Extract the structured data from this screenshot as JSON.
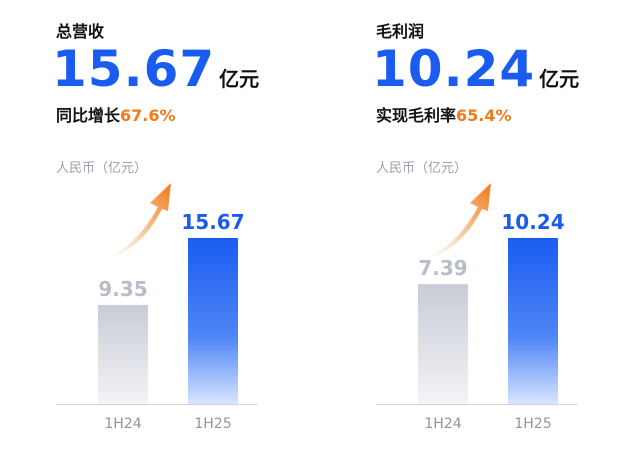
{
  "colors": {
    "accent_blue": "#1a5cf0",
    "growth_orange": "#f07a1c",
    "bar_past": "#c9ccd6",
    "axis_gray": "#cfd3da",
    "muted_text": "#9aa0ab"
  },
  "panels": [
    {
      "title": "总营收",
      "value": "15.67",
      "unit": "亿元",
      "growth_label": "同比增长",
      "growth_value": "67.6%",
      "unit_label": "人民币（亿元）"
    },
    {
      "title": "毛利润",
      "value": "10.24",
      "unit": "亿元",
      "growth_label": "实现毛利率",
      "growth_value": "65.4%",
      "unit_label": "人民币（亿元）"
    }
  ],
  "chart_data": [
    {
      "type": "bar",
      "categories": [
        "1H24",
        "1H25"
      ],
      "values": [
        9.35,
        15.67
      ],
      "value_labels": [
        "9.35",
        "15.67"
      ],
      "ylabel": "人民币（亿元）",
      "ylim": [
        0,
        15.67
      ],
      "grid": false
    },
    {
      "type": "bar",
      "categories": [
        "1H24",
        "1H25"
      ],
      "values": [
        7.39,
        10.24
      ],
      "value_labels": [
        "7.39",
        "10.24"
      ],
      "ylabel": "人民币（亿元）",
      "ylim": [
        0,
        10.24
      ],
      "grid": false
    }
  ]
}
